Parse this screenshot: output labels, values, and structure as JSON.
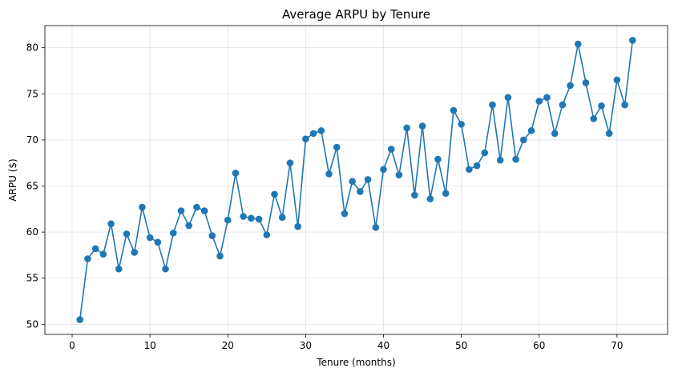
{
  "chart_data": {
    "type": "line",
    "title": "Average ARPU by Tenure",
    "xlabel": "Tenure (months)",
    "ylabel": "ARPU ($)",
    "xlim": [
      -3.5,
      76.5
    ],
    "ylim": [
      48.9,
      82.4
    ],
    "xticks": [
      0,
      10,
      20,
      30,
      40,
      50,
      60,
      70
    ],
    "yticks": [
      50,
      55,
      60,
      65,
      70,
      75,
      80
    ],
    "grid": true,
    "markers": true,
    "series": [
      {
        "color": "#1f77b4",
        "x": [
          1,
          2,
          3,
          4,
          5,
          6,
          7,
          8,
          9,
          10,
          11,
          12,
          13,
          14,
          15,
          16,
          17,
          18,
          19,
          20,
          21,
          22,
          23,
          24,
          25,
          26,
          27,
          28,
          29,
          30,
          31,
          32,
          33,
          34,
          35,
          36,
          37,
          38,
          39,
          40,
          41,
          42,
          43,
          44,
          45,
          46,
          47,
          48,
          49,
          50,
          51,
          52,
          53,
          54,
          55,
          56,
          57,
          58,
          59,
          60,
          61,
          62,
          63,
          64,
          65,
          66,
          67,
          68,
          69,
          70,
          71,
          72
        ],
        "y": [
          50.5,
          57.1,
          58.2,
          57.6,
          60.9,
          56.0,
          59.8,
          57.8,
          62.7,
          59.4,
          58.9,
          56.0,
          59.9,
          62.3,
          60.7,
          62.7,
          62.3,
          59.6,
          57.4,
          61.3,
          66.4,
          61.7,
          61.5,
          61.4,
          59.7,
          64.1,
          61.6,
          67.5,
          60.6,
          70.1,
          70.7,
          71.0,
          66.3,
          69.2,
          62.0,
          65.5,
          64.4,
          65.7,
          60.5,
          66.8,
          69.0,
          66.2,
          71.3,
          64.0,
          71.5,
          63.6,
          67.9,
          64.2,
          73.2,
          71.7,
          66.8,
          67.2,
          68.6,
          73.8,
          67.8,
          74.6,
          67.9,
          70.0,
          71.0,
          74.2,
          74.6,
          70.7,
          73.8,
          75.9,
          80.4,
          76.2,
          72.3,
          73.7,
          70.7,
          76.5,
          73.8,
          80.8
        ]
      }
    ]
  }
}
